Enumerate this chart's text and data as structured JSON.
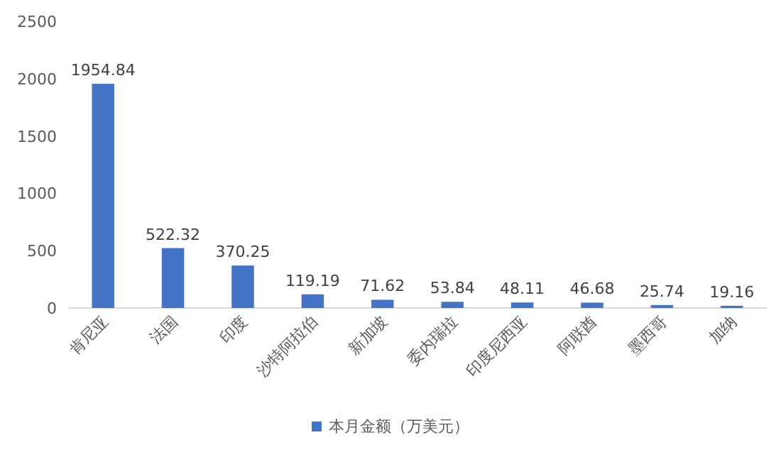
{
  "chart_data": {
    "type": "bar",
    "categories": [
      "肯尼亚",
      "法国",
      "印度",
      "沙特阿拉伯",
      "新加坡",
      "委内瑞拉",
      "印度尼西亚",
      "阿联酋",
      "墨西哥",
      "加纳"
    ],
    "series": [
      {
        "name": "本月金额（万美元）",
        "color": "#4472c4",
        "values": [
          1954.84,
          522.32,
          370.25,
          119.19,
          71.62,
          53.84,
          48.11,
          46.68,
          25.74,
          19.16
        ]
      }
    ],
    "ylim": [
      0,
      2500
    ],
    "yticks": [
      0,
      500,
      1000,
      1500,
      2000,
      2500
    ],
    "data_labels": true,
    "legend": "bottom",
    "grid": false
  }
}
